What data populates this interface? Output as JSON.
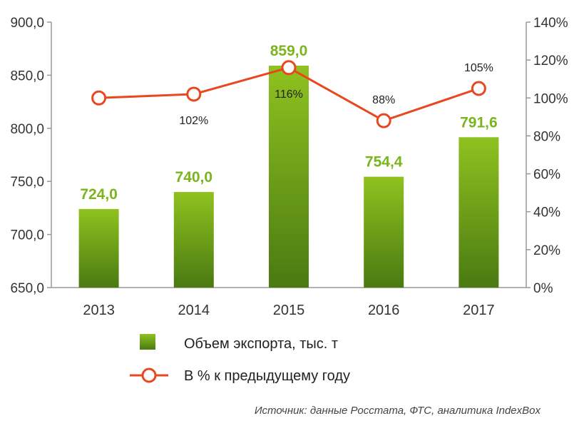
{
  "chart_data": {
    "type": "bar",
    "categories": [
      "2013",
      "2014",
      "2015",
      "2016",
      "2017"
    ],
    "series": [
      {
        "name": "Объем экспорта, тыс. т",
        "type": "bar",
        "axis": "left",
        "values": [
          724.0,
          740.0,
          859.0,
          754.4,
          791.6
        ],
        "labels": [
          "724,0",
          "740,0",
          "859,0",
          "754,4",
          "791,6"
        ],
        "color": "#7ab51d"
      },
      {
        "name": "В % к предыдущему году",
        "type": "line",
        "axis": "right",
        "values": [
          100,
          102,
          116,
          88,
          105
        ],
        "labels": [
          "",
          "102%",
          "116%",
          "88%",
          "105%"
        ],
        "color": "#e8471f"
      }
    ],
    "ylim": [
      650,
      900
    ],
    "yticks": [
      650,
      700,
      750,
      800,
      850,
      900
    ],
    "ytick_labels": [
      "650,0",
      "700,0",
      "750,0",
      "800,0",
      "850,0",
      "900,0"
    ],
    "y2lim": [
      0,
      140
    ],
    "y2ticks": [
      0,
      20,
      40,
      60,
      80,
      100,
      120,
      140
    ],
    "y2tick_labels": [
      "0%",
      "20%",
      "40%",
      "60%",
      "80%",
      "100%",
      "120%",
      "140%"
    ],
    "legend_position": "bottom",
    "grid": false
  },
  "source": "Источник: данные Росстата, ФТС, аналитика IndexBox",
  "colors": {
    "bar_top": "#8fc21f",
    "bar_bottom": "#4a7a12",
    "line": "#e8471f",
    "axis": "#999999"
  }
}
